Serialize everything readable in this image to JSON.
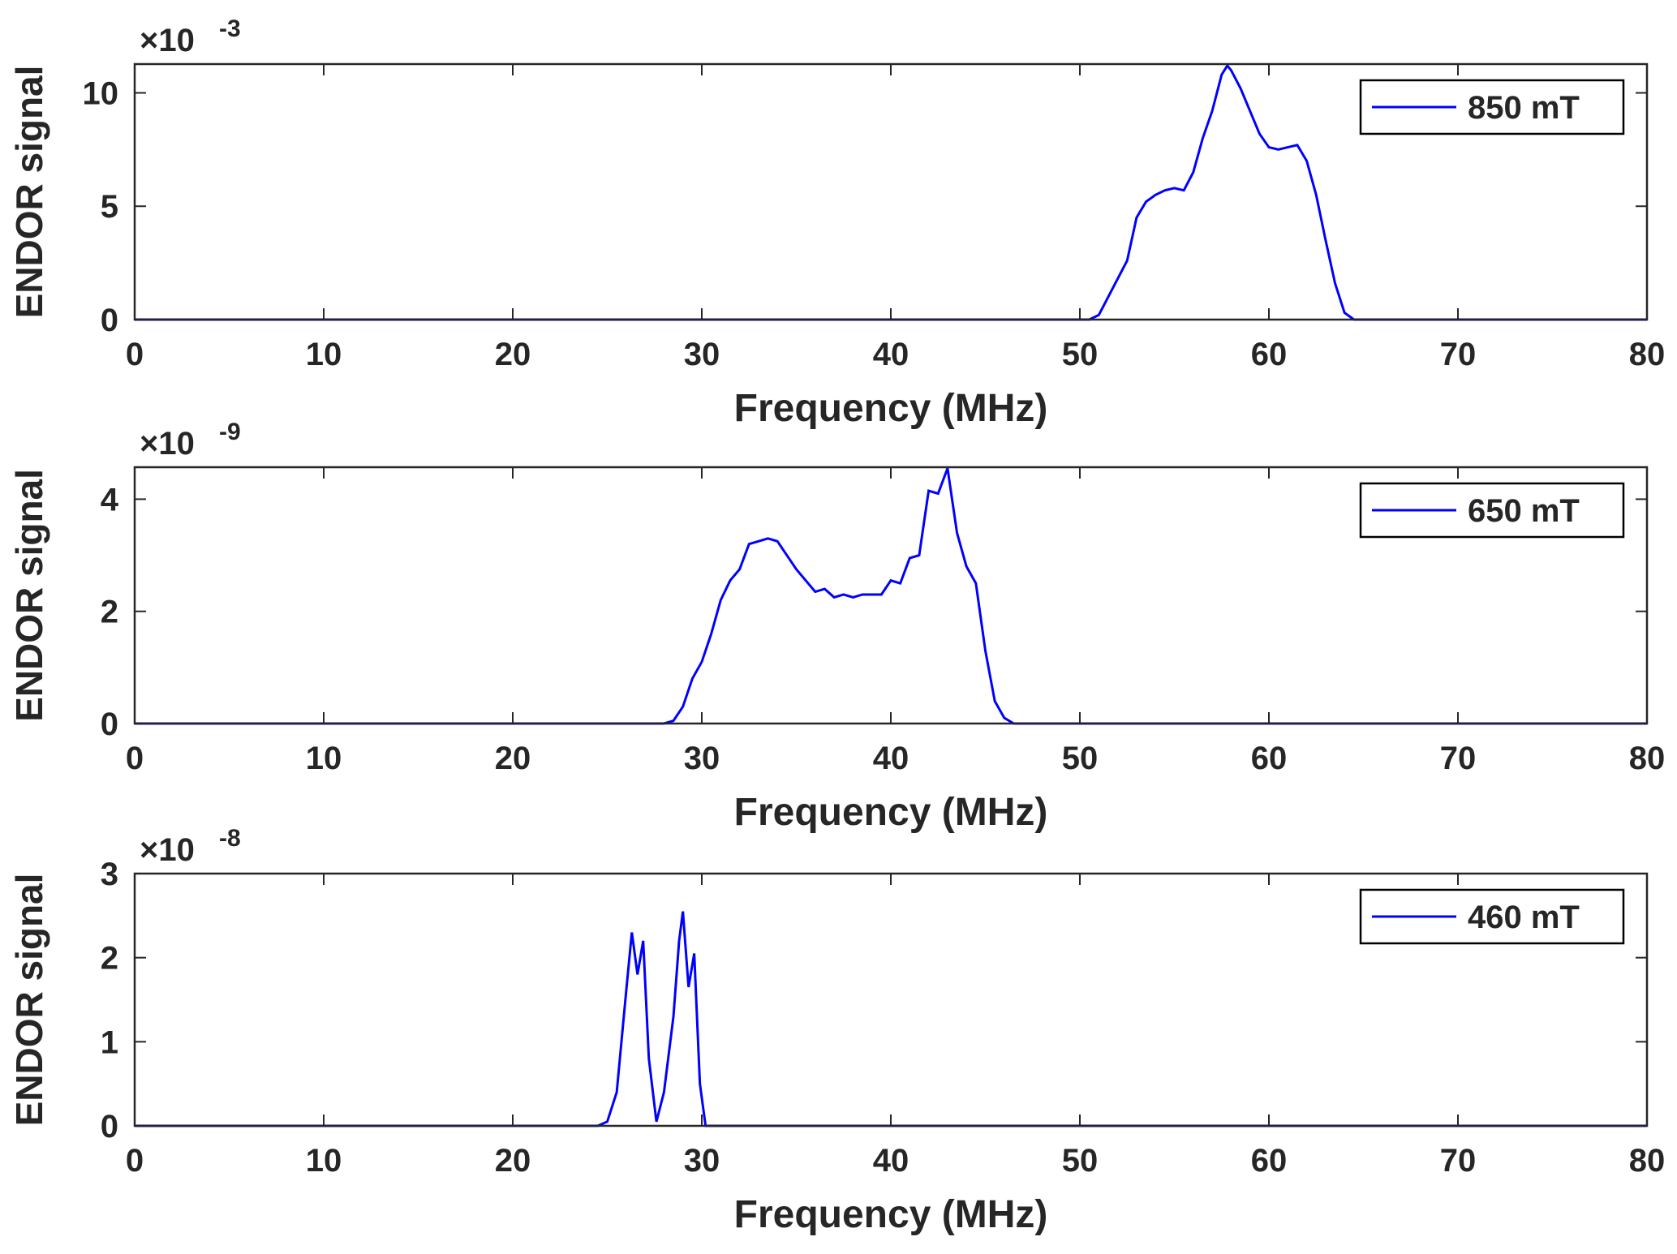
{
  "chart_data": [
    {
      "type": "line",
      "legend_position": "top-right",
      "xlabel": "Frequency (MHz)",
      "ylabel": "ENDOR signal",
      "y_scale_base": "×10",
      "y_scale_exponent": "-3",
      "xlim": [
        0,
        80
      ],
      "xticks": [
        0,
        10,
        20,
        30,
        40,
        50,
        60,
        70,
        80
      ],
      "ylim": [
        0,
        11.27
      ],
      "yticks": [
        0,
        5,
        10
      ],
      "x": [
        0,
        50.5,
        51,
        51.5,
        52,
        52.5,
        53,
        53.5,
        54,
        54.5,
        55,
        55.5,
        56,
        56.5,
        57,
        57.5,
        57.8,
        58,
        58.5,
        59,
        59.5,
        60,
        60.5,
        61,
        61.5,
        62,
        62.5,
        63,
        63.5,
        64,
        64.5,
        65,
        80
      ],
      "series": [
        {
          "name": "850 mT",
          "color": "#0000ff",
          "values": [
            0,
            0,
            0.2,
            1,
            1.8,
            2.6,
            4.5,
            5.2,
            5.5,
            5.7,
            5.8,
            5.7,
            6.5,
            8,
            9.2,
            10.8,
            11.2,
            11,
            10.2,
            9.2,
            8.2,
            7.6,
            7.5,
            7.6,
            7.7,
            7,
            5.5,
            3.5,
            1.6,
            0.3,
            0,
            0,
            0
          ]
        }
      ]
    },
    {
      "type": "line",
      "legend_position": "top-right",
      "xlabel": "Frequency (MHz)",
      "ylabel": "ENDOR signal",
      "y_scale_base": "×10",
      "y_scale_exponent": "-9",
      "xlim": [
        0,
        80
      ],
      "xticks": [
        0,
        10,
        20,
        30,
        40,
        50,
        60,
        70,
        80
      ],
      "ylim": [
        0,
        4.57
      ],
      "yticks": [
        0,
        2,
        4
      ],
      "x": [
        0,
        28,
        28.5,
        29,
        29.5,
        30,
        30.5,
        31,
        31.5,
        32,
        32.5,
        33,
        33.5,
        34,
        34.5,
        35,
        35.5,
        36,
        36.5,
        37,
        37.5,
        38,
        38.5,
        39,
        39.5,
        40,
        40.5,
        41,
        41.5,
        42,
        42.5,
        43,
        43.5,
        44,
        44.5,
        45,
        45.5,
        46,
        46.5,
        47,
        80
      ],
      "series": [
        {
          "name": "650 mT",
          "color": "#0000ff",
          "values": [
            0,
            0,
            0.05,
            0.3,
            0.8,
            1.1,
            1.6,
            2.2,
            2.55,
            2.75,
            3.2,
            3.25,
            3.3,
            3.25,
            3.0,
            2.75,
            2.55,
            2.35,
            2.4,
            2.25,
            2.3,
            2.25,
            2.3,
            2.3,
            2.3,
            2.55,
            2.5,
            2.95,
            3.0,
            4.15,
            4.1,
            4.55,
            3.4,
            2.8,
            2.5,
            1.3,
            0.4,
            0.1,
            0,
            0,
            0
          ]
        }
      ]
    },
    {
      "type": "line",
      "legend_position": "top-right",
      "xlabel": "Frequency (MHz)",
      "ylabel": "ENDOR signal",
      "y_scale_base": "×10",
      "y_scale_exponent": "-8",
      "xlim": [
        0,
        80
      ],
      "xticks": [
        0,
        10,
        20,
        30,
        40,
        50,
        60,
        70,
        80
      ],
      "ylim": [
        0,
        3
      ],
      "yticks": [
        0,
        1,
        2,
        3
      ],
      "x": [
        0,
        24.5,
        25,
        25.5,
        26,
        26.3,
        26.6,
        26.9,
        27.2,
        27.6,
        28,
        28.5,
        28.8,
        29,
        29.3,
        29.6,
        29.9,
        30.2,
        80
      ],
      "series": [
        {
          "name": "460 mT",
          "color": "#0000ff",
          "values": [
            0,
            0,
            0.05,
            0.4,
            1.6,
            2.3,
            1.8,
            2.2,
            0.8,
            0.05,
            0.4,
            1.3,
            2.2,
            2.55,
            1.65,
            2.05,
            0.5,
            0,
            0
          ]
        }
      ]
    }
  ]
}
